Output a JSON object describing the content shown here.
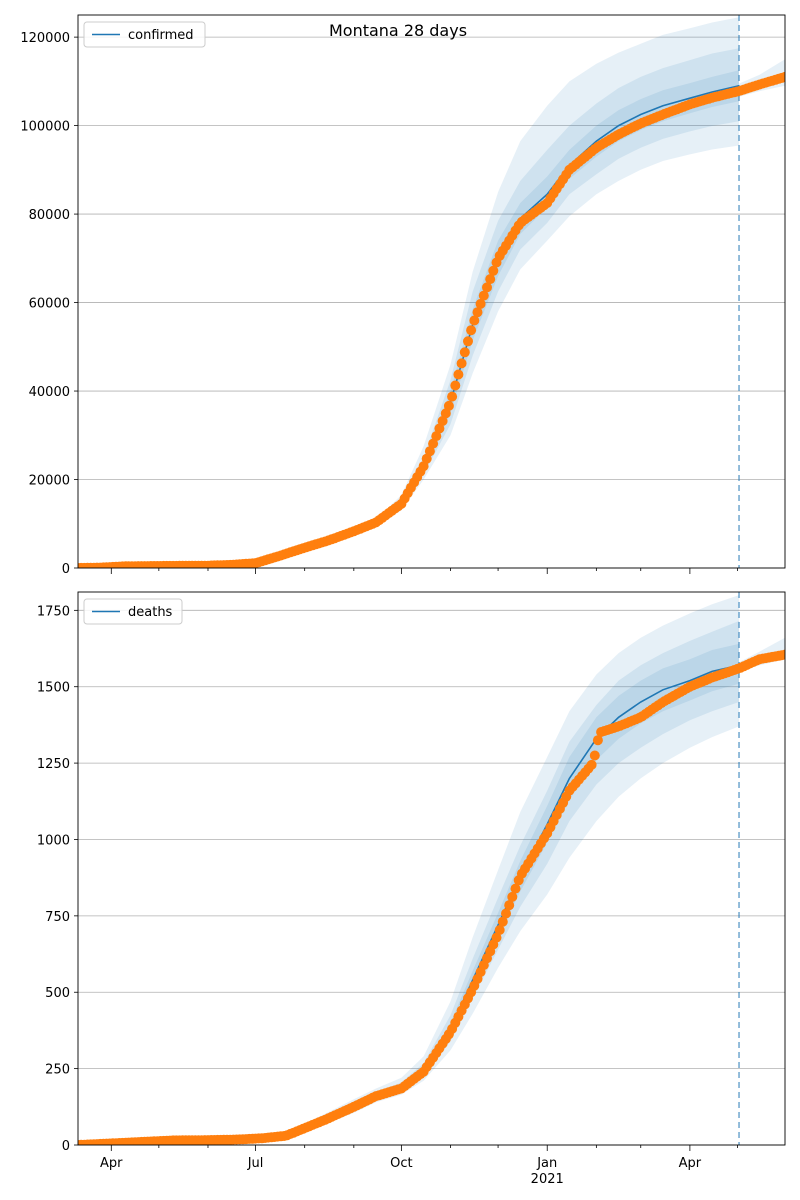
{
  "figure": {
    "title": "Montana 28 days"
  },
  "colors": {
    "model_line": "#1f77b4",
    "band": "#1f77b4",
    "observed": "#ff7f0e",
    "grid": "#b0b0b0",
    "vline": "#1f77b4"
  },
  "chart_data": [
    {
      "type": "line",
      "panel": "top",
      "legend_label": "confirmed",
      "legend_placement": "top-left",
      "x_axis": {
        "type": "date",
        "range": [
          "2020-03-11",
          "2021-05-31"
        ],
        "ticks_visible": false
      },
      "ylim": [
        0,
        125000
      ],
      "yticks": [
        0,
        20000,
        40000,
        60000,
        80000,
        100000,
        120000
      ],
      "ytick_labels": [
        "0",
        "20000",
        "40000",
        "60000",
        "80000",
        "100000",
        "120000"
      ],
      "grid": "horizontal",
      "forecast_date": "2021-05-02",
      "observed": {
        "x": [
          "2020-03-11",
          "2020-03-25",
          "2020-04-10",
          "2020-05-01",
          "2020-06-01",
          "2020-06-15",
          "2020-07-01",
          "2020-07-15",
          "2020-08-01",
          "2020-08-15",
          "2020-09-01",
          "2020-09-15",
          "2020-10-01",
          "2020-10-15",
          "2020-11-01",
          "2020-11-15",
          "2020-12-01",
          "2020-12-15",
          "2021-01-01",
          "2021-01-15",
          "2021-02-01",
          "2021-02-15",
          "2021-03-01",
          "2021-03-15",
          "2021-04-01",
          "2021-04-15",
          "2021-05-02",
          "2021-05-15",
          "2021-05-31"
        ],
        "y": [
          0,
          100,
          400,
          460,
          530,
          700,
          1100,
          2600,
          4600,
          6100,
          8300,
          10300,
          14500,
          23000,
          37500,
          55000,
          70000,
          78000,
          82500,
          90000,
          95000,
          98000,
          100500,
          102500,
          104800,
          106300,
          107800,
          109300,
          111000
        ]
      },
      "model": {
        "x": [
          "2020-03-11",
          "2020-05-01",
          "2020-06-15",
          "2020-07-01",
          "2020-07-15",
          "2020-08-01",
          "2020-08-15",
          "2020-09-01",
          "2020-09-15",
          "2020-10-01",
          "2020-10-15",
          "2020-11-01",
          "2020-11-15",
          "2020-12-01",
          "2020-12-15",
          "2021-01-01",
          "2021-01-15",
          "2021-02-01",
          "2021-02-15",
          "2021-03-01",
          "2021-03-15",
          "2021-04-01",
          "2021-04-15",
          "2021-05-02"
        ],
        "y": [
          0,
          450,
          700,
          1100,
          2500,
          4500,
          6000,
          8200,
          10200,
          14500,
          23000,
          37500,
          55000,
          70000,
          79000,
          84500,
          91000,
          96500,
          100000,
          102500,
          104500,
          106200,
          107600,
          109000
        ]
      },
      "bands": [
        {
          "x": [
            "2020-09-15",
            "2020-10-01",
            "2020-10-15",
            "2020-11-01",
            "2020-11-15",
            "2020-12-01",
            "2020-12-15",
            "2021-01-01",
            "2021-01-15",
            "2021-02-01",
            "2021-02-15",
            "2021-03-01",
            "2021-03-15",
            "2021-04-01",
            "2021-04-15",
            "2021-05-02"
          ],
          "lower": [
            9500,
            13000,
            20000,
            30000,
            44000,
            58000,
            67500,
            74000,
            79500,
            84500,
            87500,
            90000,
            92000,
            93500,
            94600,
            95500
          ],
          "upper": [
            11000,
            16500,
            27500,
            46000,
            67000,
            85000,
            96500,
            104500,
            110000,
            114000,
            116500,
            118500,
            120500,
            122000,
            123300,
            124500
          ]
        },
        {
          "x": [
            "2020-09-15",
            "2020-10-01",
            "2020-10-15",
            "2020-11-01",
            "2020-11-15",
            "2020-12-01",
            "2020-12-15",
            "2021-01-01",
            "2021-01-15",
            "2021-02-01",
            "2021-02-15",
            "2021-03-01",
            "2021-03-15",
            "2021-04-01",
            "2021-04-15",
            "2021-05-02"
          ],
          "lower": [
            9800,
            13600,
            21200,
            32500,
            48000,
            62500,
            72000,
            78000,
            84500,
            89000,
            92500,
            95000,
            97000,
            98700,
            99900,
            101000
          ],
          "upper": [
            10600,
            15400,
            25000,
            42500,
            62500,
            78500,
            87500,
            94500,
            100000,
            105000,
            108500,
            111000,
            113000,
            114800,
            116300,
            117500
          ]
        },
        {
          "x": [
            "2020-09-15",
            "2020-10-01",
            "2020-10-15",
            "2020-11-01",
            "2020-11-15",
            "2020-12-01",
            "2020-12-15",
            "2021-01-01",
            "2021-01-15",
            "2021-02-01",
            "2021-02-15",
            "2021-03-01",
            "2021-03-15",
            "2021-04-01",
            "2021-04-15",
            "2021-05-02"
          ],
          "lower": [
            10000,
            14000,
            22000,
            35000,
            51500,
            66000,
            75500,
            81500,
            88000,
            93000,
            96500,
            99000,
            101000,
            102800,
            104200,
            105500
          ],
          "upper": [
            10400,
            15000,
            24000,
            40000,
            58500,
            74000,
            82500,
            88500,
            94500,
            100000,
            103500,
            106000,
            108000,
            109600,
            111000,
            112500
          ]
        }
      ],
      "post_band": {
        "x": [
          "2021-05-02",
          "2021-05-15",
          "2021-05-31"
        ],
        "lower": [
          106500,
          107800,
          109000
        ],
        "upper": [
          109500,
          111500,
          115000
        ]
      }
    },
    {
      "type": "line",
      "panel": "bottom",
      "legend_label": "deaths",
      "legend_placement": "top-left",
      "x_axis": {
        "type": "date",
        "range": [
          "2020-03-11",
          "2021-05-31"
        ]
      },
      "xtick_labels": [
        {
          "date": "2020-04-01",
          "label": "Apr"
        },
        {
          "date": "2020-07-01",
          "label": "Jul"
        },
        {
          "date": "2020-10-01",
          "label": "Oct"
        },
        {
          "date": "2021-01-01",
          "label": "Jan"
        },
        {
          "date": "2021-04-01",
          "label": "Apr"
        }
      ],
      "year_label": "2021",
      "ylim": [
        0,
        1810
      ],
      "yticks": [
        0,
        250,
        500,
        750,
        1000,
        1250,
        1500,
        1750
      ],
      "ytick_labels": [
        "0",
        "250",
        "500",
        "750",
        "1000",
        "1250",
        "1500",
        "1750"
      ],
      "grid": "horizontal",
      "forecast_date": "2021-05-02",
      "observed": {
        "x": [
          "2020-03-11",
          "2020-03-31",
          "2020-04-20",
          "2020-05-10",
          "2020-06-01",
          "2020-06-20",
          "2020-07-05",
          "2020-07-20",
          "2020-08-01",
          "2020-08-15",
          "2020-09-01",
          "2020-09-15",
          "2020-10-01",
          "2020-10-15",
          "2020-11-01",
          "2020-11-15",
          "2020-12-01",
          "2020-12-15",
          "2021-01-01",
          "2021-01-15",
          "2021-01-30",
          "2021-02-03",
          "2021-02-15",
          "2021-03-01",
          "2021-03-15",
          "2021-04-01",
          "2021-04-15",
          "2021-05-02",
          "2021-05-15",
          "2021-05-31"
        ],
        "y": [
          0,
          5,
          10,
          15,
          16,
          18,
          22,
          30,
          55,
          85,
          125,
          160,
          185,
          240,
          370,
          510,
          690,
          880,
          1020,
          1160,
          1250,
          1350,
          1370,
          1400,
          1450,
          1500,
          1530,
          1560,
          1590,
          1605
        ]
      },
      "model": {
        "x": [
          "2020-03-11",
          "2020-06-20",
          "2020-07-05",
          "2020-07-20",
          "2020-08-01",
          "2020-08-15",
          "2020-09-01",
          "2020-09-15",
          "2020-10-01",
          "2020-10-15",
          "2020-11-01",
          "2020-11-15",
          "2020-12-01",
          "2020-12-15",
          "2021-01-01",
          "2021-01-15",
          "2021-02-01",
          "2021-02-15",
          "2021-03-01",
          "2021-03-15",
          "2021-04-01",
          "2021-04-15",
          "2021-05-02"
        ],
        "y": [
          0,
          18,
          22,
          30,
          55,
          85,
          125,
          160,
          190,
          245,
          380,
          540,
          720,
          880,
          1050,
          1200,
          1330,
          1400,
          1450,
          1490,
          1520,
          1550,
          1570
        ]
      },
      "bands": [
        {
          "x": [
            "2020-08-01",
            "2020-08-15",
            "2020-09-01",
            "2020-09-15",
            "2020-10-01",
            "2020-10-15",
            "2020-11-01",
            "2020-11-15",
            "2020-12-01",
            "2020-12-15",
            "2021-01-01",
            "2021-01-15",
            "2021-02-01",
            "2021-02-15",
            "2021-03-01",
            "2021-03-15",
            "2021-04-01",
            "2021-04-15",
            "2021-05-02"
          ],
          "lower": [
            40,
            70,
            105,
            140,
            165,
            210,
            310,
            430,
            580,
            700,
            820,
            940,
            1060,
            1140,
            1200,
            1250,
            1300,
            1335,
            1370
          ],
          "upper": [
            70,
            105,
            150,
            185,
            220,
            290,
            470,
            680,
            900,
            1090,
            1270,
            1420,
            1540,
            1610,
            1660,
            1700,
            1740,
            1770,
            1800
          ]
        },
        {
          "x": [
            "2020-08-01",
            "2020-08-15",
            "2020-09-01",
            "2020-09-15",
            "2020-10-01",
            "2020-10-15",
            "2020-11-01",
            "2020-11-15",
            "2020-12-01",
            "2020-12-15",
            "2021-01-01",
            "2021-01-15",
            "2021-02-01",
            "2021-02-15",
            "2021-03-01",
            "2021-03-15",
            "2021-04-01",
            "2021-04-15",
            "2021-05-02"
          ],
          "lower": [
            47,
            77,
            113,
            150,
            175,
            225,
            340,
            480,
            640,
            780,
            920,
            1060,
            1180,
            1250,
            1300,
            1345,
            1390,
            1420,
            1450
          ],
          "upper": [
            63,
            95,
            138,
            172,
            205,
            268,
            425,
            610,
            810,
            980,
            1160,
            1320,
            1440,
            1520,
            1570,
            1610,
            1650,
            1680,
            1715
          ]
        },
        {
          "x": [
            "2020-08-01",
            "2020-08-15",
            "2020-09-01",
            "2020-09-15",
            "2020-10-01",
            "2020-10-15",
            "2020-11-01",
            "2020-11-15",
            "2020-12-01",
            "2020-12-15",
            "2021-01-01",
            "2021-01-15",
            "2021-02-01",
            "2021-02-15",
            "2021-03-01",
            "2021-03-15",
            "2021-04-01",
            "2021-04-15",
            "2021-05-02"
          ],
          "lower": [
            51,
            80,
            118,
            155,
            182,
            235,
            360,
            510,
            680,
            830,
            990,
            1130,
            1260,
            1330,
            1380,
            1420,
            1455,
            1485,
            1510
          ],
          "upper": [
            59,
            90,
            132,
            166,
            198,
            255,
            400,
            570,
            760,
            930,
            1110,
            1270,
            1400,
            1470,
            1520,
            1560,
            1590,
            1620,
            1640
          ]
        }
      ],
      "post_band": {
        "x": [
          "2021-05-02",
          "2021-05-15",
          "2021-05-31"
        ],
        "lower": [
          1550,
          1570,
          1590
        ],
        "upper": [
          1580,
          1615,
          1660
        ]
      }
    }
  ]
}
